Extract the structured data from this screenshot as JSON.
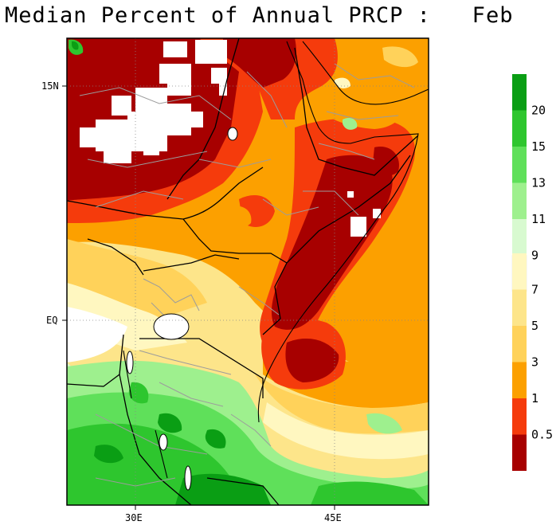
{
  "title": "Median Percent of Annual PRCP :   Feb",
  "map": {
    "lat_labels": [
      "15N",
      "EQ"
    ],
    "lon_labels": [
      "30E",
      "45E"
    ]
  },
  "colorbar": {
    "wet": {
      "colors": [
        "#0a9e14",
        "#2ec62e",
        "#5fe05a",
        "#9ef08e",
        "#d8fad0",
        "#ffffff"
      ],
      "labels": [
        "20",
        "15",
        "13",
        "11",
        "9"
      ]
    },
    "dry": {
      "colors": [
        "#fff7c0",
        "#fde58a",
        "#ffd25a",
        "#fca000",
        "#f53b0c",
        "#a70000"
      ],
      "labels": [
        "7",
        "5",
        "3",
        "1",
        "0.5"
      ]
    }
  },
  "colors": {
    "dark_red": "#a70000",
    "red": "#f53b0c",
    "orange": "#fca000",
    "gold": "#ffd25a",
    "light_yellow": "#fde58a",
    "pale": "#fff7c0",
    "light_green": "#9ef08e",
    "green": "#5fe05a",
    "med_green": "#2ec62e",
    "dark_green": "#0a9e14"
  }
}
